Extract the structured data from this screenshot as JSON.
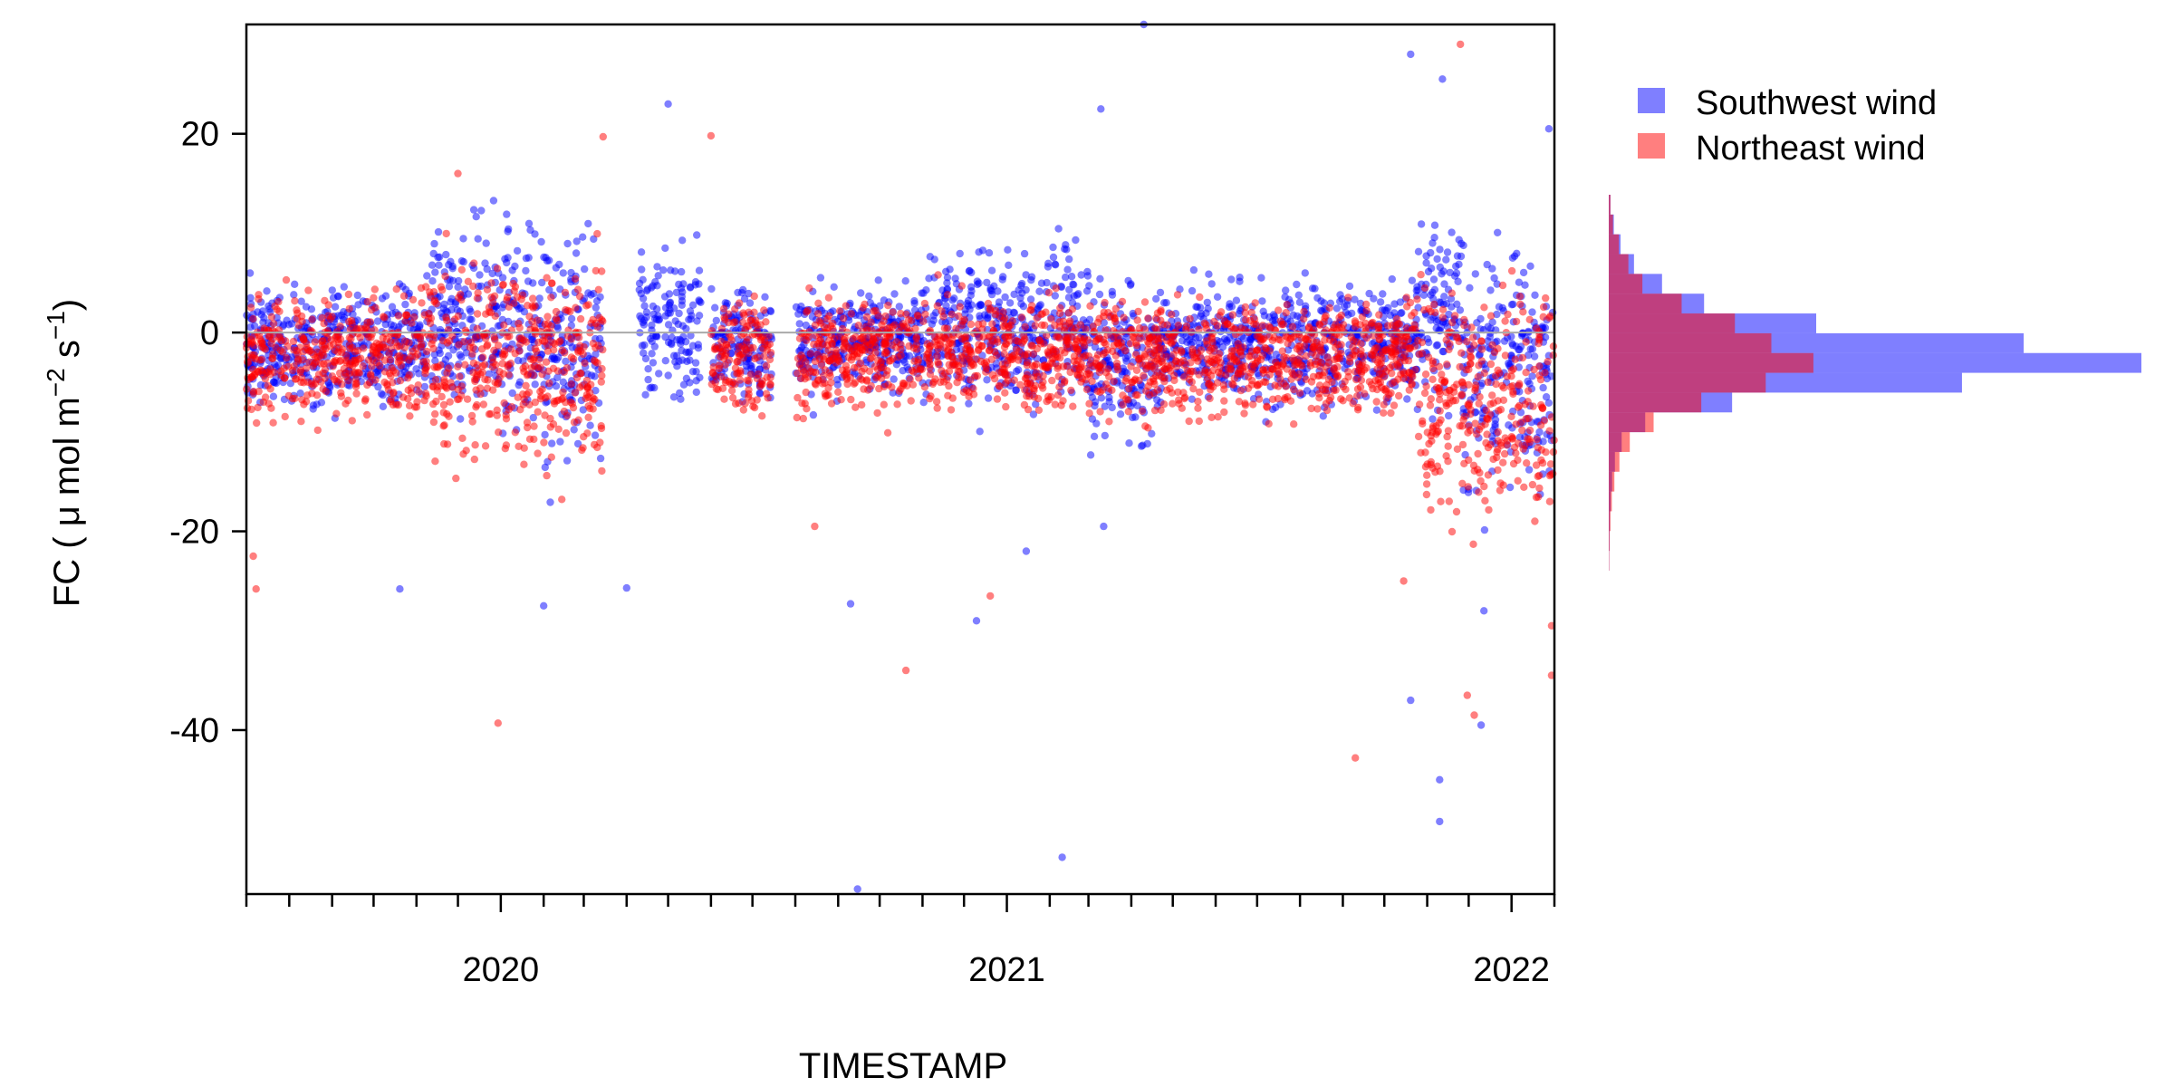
{
  "chart_data": {
    "type": "scatter",
    "xlabel": "TIMESTAMP",
    "ylabel_text": "FC ( μ mol m",
    "ylabel_sup1": "−2",
    "ylabel_mid": " s",
    "ylabel_sup2": "−1",
    "ylabel_end": ")",
    "x_ticks": [
      {
        "date": "2020-01-01",
        "label": "2020"
      },
      {
        "date": "2021-01-01",
        "label": "2021"
      },
      {
        "date": "2022-01-01",
        "label": "2022"
      }
    ],
    "x_range": [
      "2019-07-01",
      "2022-02-01"
    ],
    "y_ticks": [
      20,
      0,
      -20,
      -40
    ],
    "y_tick_labels": [
      "20",
      "0",
      "-20",
      "-40"
    ],
    "ylim": [
      -56.5,
      31
    ],
    "reference_line_y": 0,
    "grid": false,
    "legend_position": "top-right",
    "series": [
      {
        "name": "Southwest wind",
        "color": "#0000ff",
        "segments": [
          {
            "start": "2019-07-01",
            "end": "2019-11-10",
            "mean": -1.5,
            "spread": 3.0
          },
          {
            "start": "2019-11-10",
            "end": "2020-02-01",
            "mean": 1.0,
            "spread": 5.0
          },
          {
            "start": "2020-02-01",
            "end": "2020-03-15",
            "mean": -1.5,
            "spread": 6.0
          },
          {
            "start": "2020-04-10",
            "end": "2020-05-25",
            "mean": 0.5,
            "spread": 4.5
          },
          {
            "start": "2020-06-01",
            "end": "2020-07-15",
            "mean": -1.5,
            "spread": 3.0
          },
          {
            "start": "2020-08-01",
            "end": "2020-11-01",
            "mean": -1.0,
            "spread": 2.8
          },
          {
            "start": "2020-11-01",
            "end": "2021-03-01",
            "mean": 0.5,
            "spread": 4.0
          },
          {
            "start": "2021-03-01",
            "end": "2021-04-20",
            "mean": -3.0,
            "spread": 4.0
          },
          {
            "start": "2021-04-20",
            "end": "2021-10-25",
            "mean": -1.0,
            "spread": 3.2
          },
          {
            "start": "2021-10-25",
            "end": "2021-11-25",
            "mean": 2.0,
            "spread": 5.0
          },
          {
            "start": "2021-11-25",
            "end": "2022-02-01",
            "mean": -4.0,
            "spread": 6.5
          }
        ],
        "outliers": [
          [
            "2021-02-10",
            -52.8
          ],
          [
            "2020-09-15",
            -56.0
          ],
          [
            "2021-10-20",
            -37.0
          ],
          [
            "2021-11-10",
            -45.0
          ],
          [
            "2021-11-10",
            -49.2
          ],
          [
            "2021-12-10",
            -39.5
          ],
          [
            "2021-12-12",
            -28.0
          ],
          [
            "2020-02-01",
            -27.5
          ],
          [
            "2019-10-20",
            -25.8
          ],
          [
            "2020-05-01",
            23.0
          ],
          [
            "2021-04-10",
            31.0
          ],
          [
            "2021-11-12",
            25.5
          ],
          [
            "2021-10-20",
            28.0
          ],
          [
            "2022-01-28",
            20.5
          ],
          [
            "2021-03-10",
            22.5
          ],
          [
            "2020-04-01",
            -25.7
          ],
          [
            "2020-12-10",
            -29.0
          ],
          [
            "2020-09-10",
            -27.3
          ],
          [
            "2021-03-12",
            -19.5
          ],
          [
            "2021-01-15",
            -22.0
          ]
        ]
      },
      {
        "name": "Northeast wind",
        "color": "#ff0000",
        "segments": [
          {
            "start": "2019-07-01",
            "end": "2019-11-10",
            "mean": -2.5,
            "spread": 3.0
          },
          {
            "start": "2019-11-10",
            "end": "2020-03-15",
            "mean": -3.0,
            "spread": 5.5
          },
          {
            "start": "2020-06-01",
            "end": "2020-07-15",
            "mean": -2.5,
            "spread": 3.0
          },
          {
            "start": "2020-08-01",
            "end": "2020-11-01",
            "mean": -2.0,
            "spread": 3.0
          },
          {
            "start": "2020-11-01",
            "end": "2021-10-25",
            "mean": -2.5,
            "spread": 3.0
          },
          {
            "start": "2021-10-25",
            "end": "2022-02-01",
            "mean": -7.0,
            "spread": 6.0
          }
        ],
        "outliers": [
          [
            "2019-12-30",
            -39.3
          ],
          [
            "2020-10-20",
            -34.0
          ],
          [
            "2020-12-20",
            -26.5
          ],
          [
            "2021-09-10",
            -42.8
          ],
          [
            "2021-11-25",
            29.0
          ],
          [
            "2021-11-30",
            -36.5
          ],
          [
            "2021-12-05",
            -38.5
          ],
          [
            "2022-01-30",
            -29.5
          ],
          [
            "2022-01-30",
            -34.5
          ],
          [
            "2019-07-08",
            -25.8
          ],
          [
            "2019-07-06",
            -22.5
          ],
          [
            "2020-03-15",
            19.7
          ],
          [
            "2020-06-01",
            19.8
          ],
          [
            "2021-10-15",
            -25.0
          ],
          [
            "2019-12-01",
            16.0
          ],
          [
            "2020-08-15",
            -19.5
          ]
        ]
      }
    ],
    "histogram": {
      "orientation": "horizontal",
      "bin_edges": [
        14,
        12,
        10,
        8,
        6,
        4,
        2,
        0,
        -2,
        -4,
        -6,
        -8,
        -10,
        -12,
        -14,
        -16,
        -18,
        -20,
        -22,
        -24
      ],
      "southwest_counts": [
        60,
        180,
        420,
        900,
        1900,
        3400,
        7400,
        14800,
        19000,
        12600,
        4400,
        1300,
        460,
        220,
        120,
        70,
        40,
        25,
        12
      ],
      "northeast_counts": [
        60,
        150,
        360,
        700,
        1200,
        2600,
        4500,
        5800,
        7300,
        5600,
        3300,
        1600,
        750,
        380,
        200,
        110,
        60,
        30,
        15
      ]
    }
  }
}
